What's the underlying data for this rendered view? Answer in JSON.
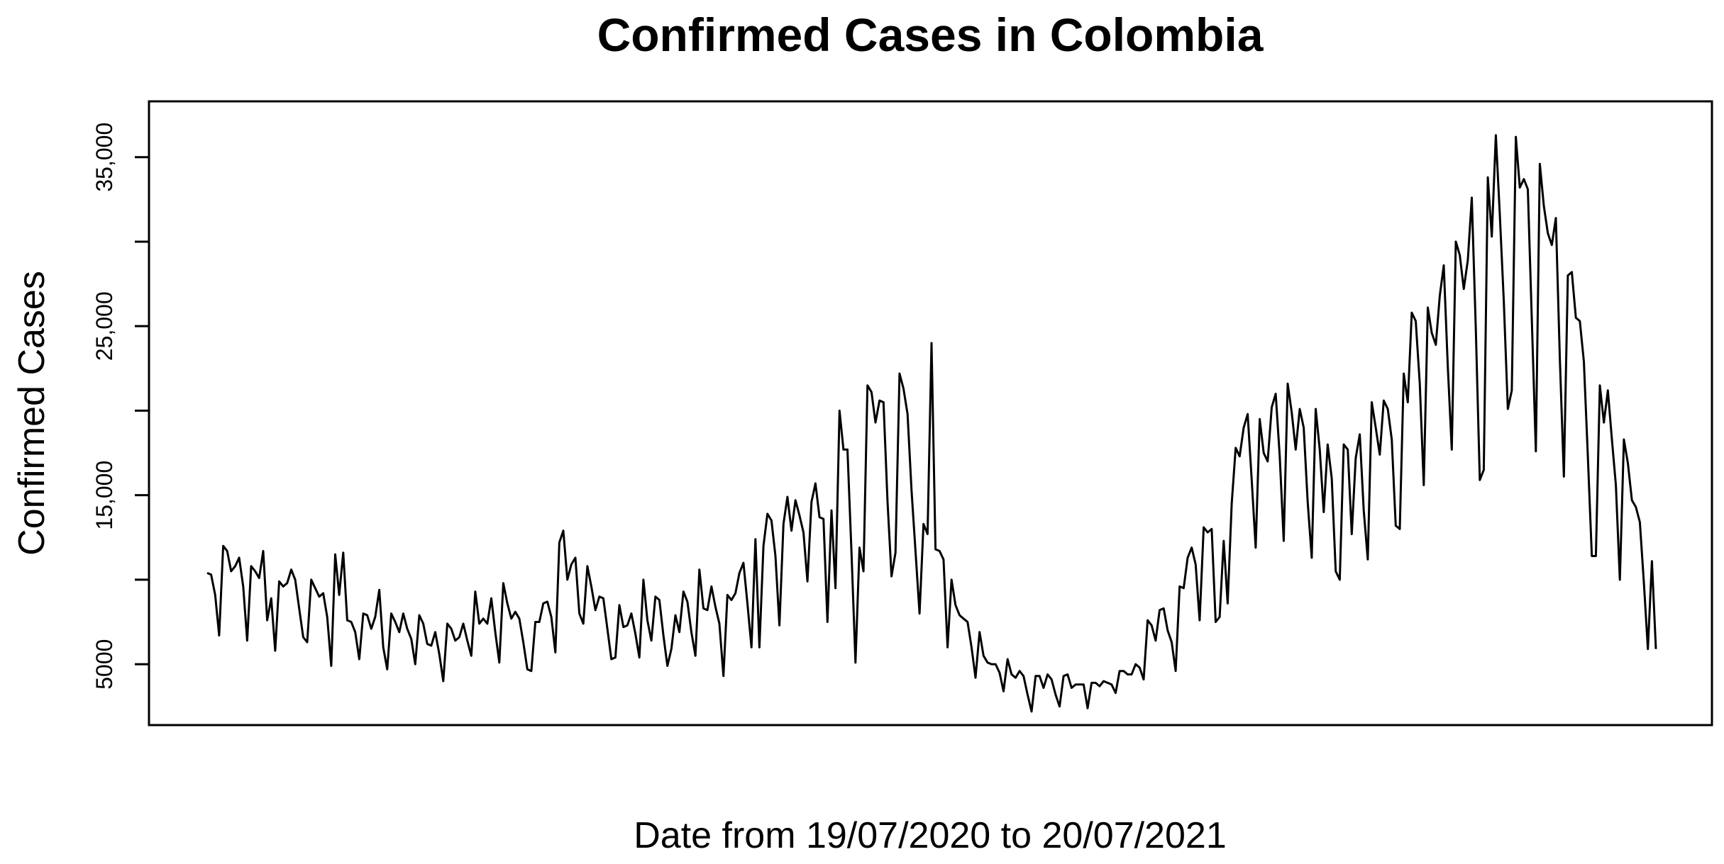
{
  "chart_data": {
    "type": "line",
    "title": "Confirmed Cases in Colombia",
    "xlabel": "Date from 19/07/2020 to 20/07/2021",
    "ylabel": "Confirmed Cases",
    "x_start": "19/07/2020",
    "x_end": "20/07/2021",
    "ylim": [
      1400,
      38300
    ],
    "yticks": [
      5000,
      15000,
      25000,
      35000
    ],
    "ytick_labels": [
      "5000",
      "15,000",
      "25,000",
      "35,000"
    ],
    "grid": false,
    "legend": "none",
    "line_color": "#000000",
    "series": [
      {
        "values": [
          10400,
          10300,
          9100,
          6700,
          12000,
          11700,
          10500,
          10800,
          11300,
          9600,
          6400,
          10800,
          10500,
          10100,
          11700,
          7600,
          8900,
          5800,
          9900,
          9600,
          9800,
          10600,
          10000,
          8300,
          6600,
          6300,
          10000,
          9500,
          9000,
          9200,
          7800,
          4900,
          11500,
          9100,
          11600,
          7600,
          7500,
          6900,
          5300,
          8000,
          7900,
          7100,
          7800,
          9400,
          6000,
          4700,
          8000,
          7500,
          6900,
          8000,
          7100,
          6500,
          5000,
          7900,
          7400,
          6200,
          6100,
          6900,
          5600,
          4000,
          7400,
          7100,
          6400,
          6600,
          7400,
          6400,
          5500,
          9300,
          7400,
          7700,
          7400,
          8900,
          6900,
          5100,
          9800,
          8600,
          7700,
          8100,
          7700,
          6300,
          4700,
          4600,
          7500,
          7500,
          8600,
          8700,
          7800,
          5700,
          12200,
          12900,
          10000,
          10900,
          11300,
          8000,
          7400,
          10800,
          9600,
          8200,
          9000,
          8900,
          7100,
          5300,
          5400,
          8500,
          7200,
          7300,
          8000,
          6800,
          5400,
          10000,
          7600,
          6400,
          9000,
          8800,
          6700,
          4900,
          5900,
          7900,
          6900,
          9300,
          8700,
          6900,
          5500,
          10600,
          8300,
          8200,
          9600,
          8400,
          7400,
          4300,
          9100,
          8800,
          9200,
          10400,
          11000,
          8600,
          6000,
          12400,
          6000,
          12000,
          13900,
          13500,
          11400,
          7300,
          13300,
          14900,
          12900,
          14700,
          13800,
          12800,
          9900,
          14600,
          15700,
          13700,
          13600,
          7500,
          14100,
          9500,
          20000,
          17700,
          17700,
          11600,
          5100,
          11900,
          10500,
          21500,
          21100,
          19300,
          20600,
          20500,
          14600,
          10200,
          11600,
          22200,
          21300,
          19800,
          15300,
          11700,
          8000,
          13300,
          12700,
          24000,
          11800,
          11700,
          11200,
          6000,
          10000,
          8500,
          7900,
          7700,
          7500,
          6000,
          4200,
          6900,
          5500,
          5100,
          5000,
          5000,
          4500,
          3400,
          5300,
          4400,
          4200,
          4600,
          4300,
          3200,
          2200,
          4300,
          4300,
          3600,
          4400,
          4100,
          3200,
          2500,
          4300,
          4400,
          3600,
          3800,
          3800,
          3800,
          2400,
          3900,
          3900,
          3700,
          4000,
          3900,
          3800,
          3300,
          4600,
          4600,
          4400,
          4400,
          5000,
          4800,
          4100,
          7600,
          7300,
          6400,
          8200,
          8300,
          7000,
          6300,
          4600,
          9600,
          9500,
          11300,
          11900,
          10900,
          7600,
          13100,
          12800,
          13000,
          7500,
          7800,
          12300,
          8600,
          14500,
          17800,
          17300,
          19000,
          19800,
          15900,
          11900,
          19500,
          17500,
          17000,
          20200,
          21000,
          17300,
          12300,
          21600,
          19900,
          17700,
          20100,
          19000,
          14600,
          11300,
          20100,
          17700,
          14000,
          18000,
          16000,
          10500,
          10000,
          18000,
          17700,
          12700,
          17200,
          18600,
          14100,
          11200,
          20500,
          19000,
          17400,
          20600,
          20100,
          18300,
          13200,
          13000,
          22200,
          20500,
          25800,
          25300,
          21600,
          15600,
          26100,
          24600,
          23900,
          26800,
          28600,
          22600,
          17700,
          30000,
          29200,
          27200,
          28900,
          32600,
          24800,
          15900,
          16500,
          33800,
          30300,
          36300,
          31600,
          26500,
          20100,
          21200,
          36200,
          33200,
          33700,
          33100,
          25400,
          17600,
          34600,
          32100,
          30500,
          29800,
          31400,
          23100,
          16100,
          28000,
          28200,
          25500,
          25300,
          22900,
          17300,
          11400,
          11400,
          21500,
          19300,
          21200,
          18300,
          15600,
          10000,
          18300,
          16900,
          14700,
          14300,
          13400,
          9800,
          5900,
          11100,
          5900
        ]
      }
    ]
  }
}
